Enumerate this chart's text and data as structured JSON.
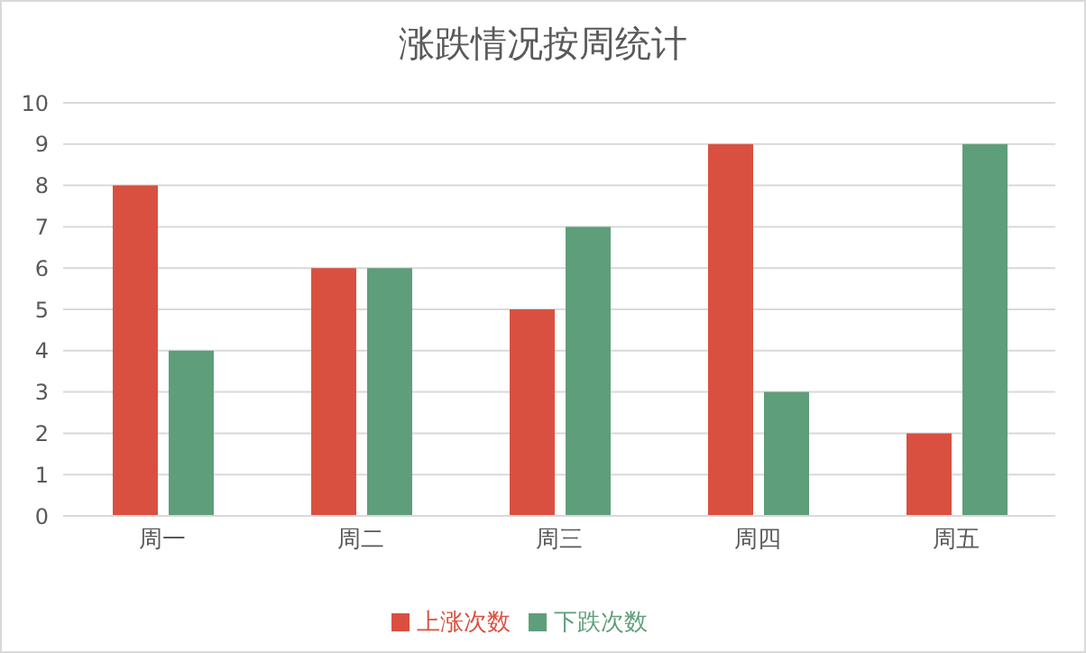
{
  "chart_data": {
    "type": "bar",
    "title": "涨跌情况按周统计",
    "categories": [
      "周一",
      "周二",
      "周三",
      "周四",
      "周五"
    ],
    "series": [
      {
        "name": "上涨次数",
        "color": "#d95040",
        "values": [
          8,
          6,
          5,
          9,
          2
        ]
      },
      {
        "name": "下跌次数",
        "color": "#5f9e7a",
        "values": [
          4,
          6,
          7,
          3,
          9
        ]
      }
    ],
    "ylim": [
      0,
      10
    ],
    "yticks": [
      0,
      1,
      2,
      3,
      4,
      5,
      6,
      7,
      8,
      9,
      10
    ],
    "grid": "y",
    "legend": "bottom"
  }
}
